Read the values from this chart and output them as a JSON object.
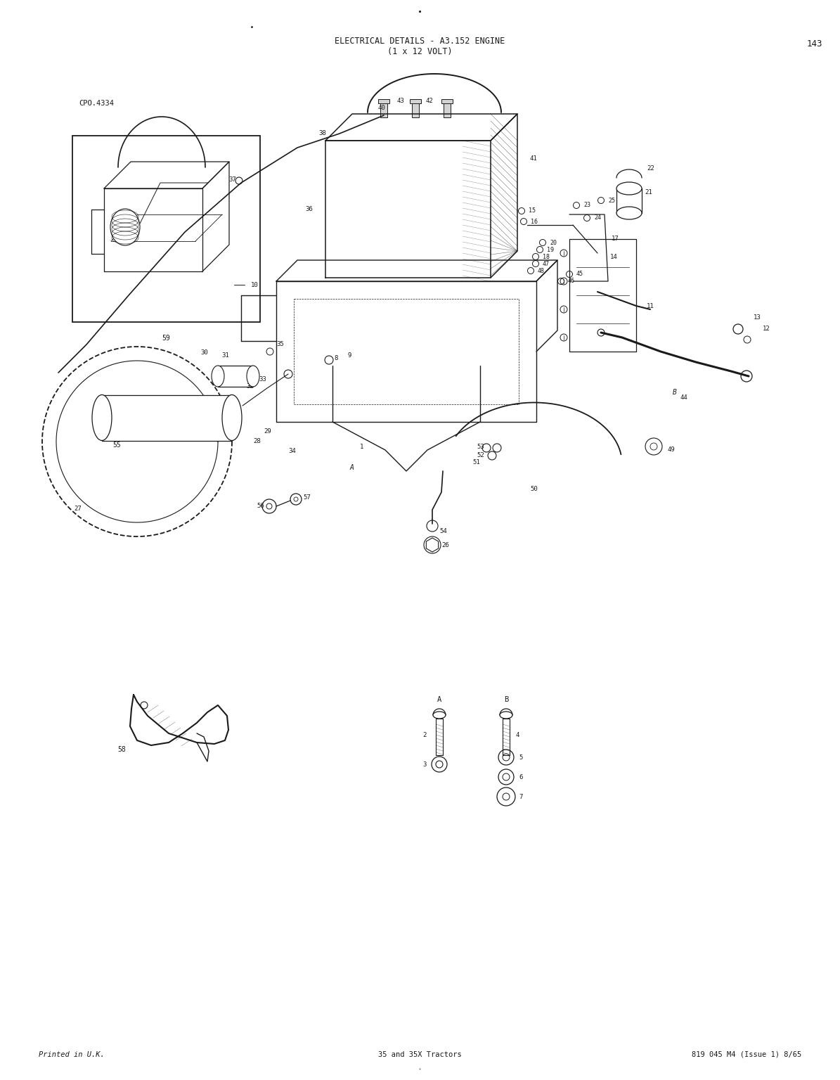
{
  "title_line1": "ELECTRICAL DETAILS - A3.152 ENGINE",
  "title_line2": "(1 x 12 VOLT)",
  "page_number": "143",
  "ref_code": "CPO.4334",
  "footer_left": "Printed in U.K.",
  "footer_center": "35 and 35X Tractors",
  "footer_right": "819 045 M4 (Issue 1) 8/65",
  "bg_color": "#ffffff",
  "text_color": "#1a1a1a",
  "fig_width": 11.95,
  "fig_height": 15.36,
  "dpi": 100,
  "title_fontsize": 8.5,
  "body_fontsize": 6.5,
  "footer_fontsize": 7.5,
  "page_num_fontsize": 9,
  "ref_fontsize": 7.5,
  "label_fontsize": 6.5
}
